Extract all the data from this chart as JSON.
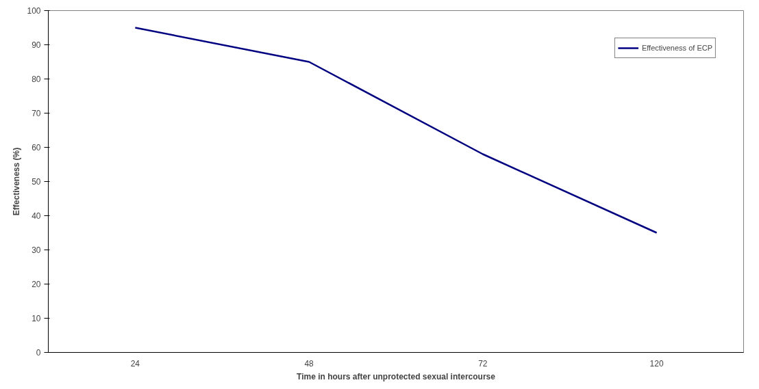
{
  "chart_data": {
    "type": "line",
    "xlabel": "Time in hours after unprotected sexual intercourse",
    "ylabel": "Effectiveness (%)",
    "categories": [
      "24",
      "48",
      "72",
      "120"
    ],
    "series": [
      {
        "name": "Effectiveness of ECP",
        "color": "#000080",
        "values": [
          95,
          85,
          58,
          35
        ]
      }
    ],
    "ylim": [
      0,
      100
    ],
    "yticks": [
      0,
      10,
      20,
      30,
      40,
      50,
      60,
      70,
      80,
      90,
      100
    ],
    "grid": false,
    "legend": "top right",
    "marker": "none",
    "line_style": "solid"
  }
}
